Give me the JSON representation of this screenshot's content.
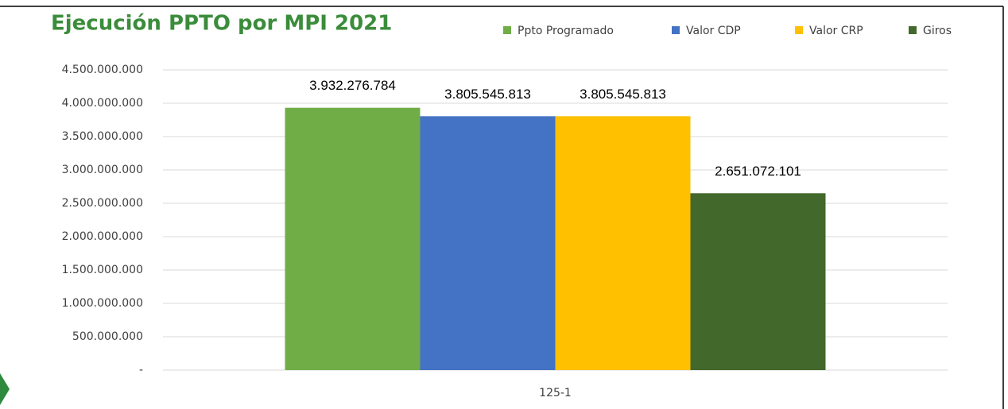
{
  "chart_data": {
    "type": "bar",
    "title": "Ejecución PPTO por MPI 2021",
    "categories": [
      "125-1"
    ],
    "series": [
      {
        "name": "Ppto Programado",
        "color": "#70ad47",
        "values": [
          3932276784
        ],
        "value_labels": [
          "3.932.276.784"
        ]
      },
      {
        "name": "Valor CDP",
        "color": "#4472c4",
        "values": [
          3805545813
        ],
        "value_labels": [
          "3.805.545.813"
        ]
      },
      {
        "name": "Valor CRP",
        "color": "#ffc000",
        "values": [
          3805545813
        ],
        "value_labels": [
          "3.805.545.813"
        ]
      },
      {
        "name": "Giros",
        "color": "#43682b",
        "values": [
          2651072101
        ],
        "value_labels": [
          "2.651.072.101"
        ]
      }
    ],
    "ylim": [
      0,
      4500000000
    ],
    "yticks": [
      {
        "value": 0,
        "label": "-"
      },
      {
        "value": 500000000,
        "label": "500.000.000"
      },
      {
        "value": 1000000000,
        "label": "1.000.000.000"
      },
      {
        "value": 1500000000,
        "label": "1.500.000.000"
      },
      {
        "value": 2000000000,
        "label": "2.000.000.000"
      },
      {
        "value": 2500000000,
        "label": "2.500.000.000"
      },
      {
        "value": 3000000000,
        "label": "3.000.000.000"
      },
      {
        "value": 3500000000,
        "label": "3.500.000.000"
      },
      {
        "value": 4000000000,
        "label": "4.000.000.000"
      },
      {
        "value": 4500000000,
        "label": "4.500.000.000"
      }
    ],
    "grid": true,
    "legend": "top"
  }
}
